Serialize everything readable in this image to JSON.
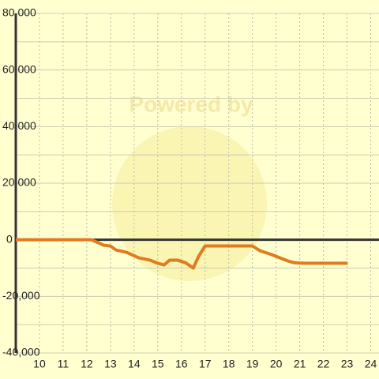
{
  "chart_data": {
    "type": "line",
    "watermark": "Powered by",
    "x": [
      9,
      12.2,
      12.5,
      12.7,
      13,
      13.23,
      13.67,
      14.2,
      14.67,
      15,
      15.27,
      15.5,
      15.83,
      16.17,
      16.5,
      16.73,
      17,
      19,
      19.33,
      19.83,
      20.17,
      20.5,
      20.77,
      21.17,
      23.03
    ],
    "series": [
      {
        "color": "#e07b20",
        "values": [
          0,
          0,
          -1100,
          -1900,
          -2200,
          -3600,
          -4400,
          -6400,
          -7200,
          -8300,
          -8900,
          -7200,
          -7200,
          -8100,
          -10000,
          -5800,
          -2200,
          -2200,
          -3900,
          -5300,
          -6400,
          -7500,
          -8100,
          -8300,
          -8300
        ]
      }
    ],
    "xlim": [
      9,
      24.35
    ],
    "xticks": [
      10,
      11,
      12,
      13,
      14,
      15,
      16,
      17,
      18,
      19,
      20,
      21,
      22,
      23,
      24
    ],
    "ylim": [
      -40000,
      80000
    ],
    "yticks": [
      {
        "value": -40000,
        "label": "-40,000"
      },
      {
        "value": -20000,
        "label": "-20,000"
      },
      0,
      {
        "value": 20000,
        "label": "20,000"
      },
      {
        "value": 40000,
        "label": "40,000"
      },
      {
        "value": 60000,
        "label": "60,000"
      },
      {
        "value": 80000,
        "label": "80,000"
      }
    ],
    "grid": true
  }
}
